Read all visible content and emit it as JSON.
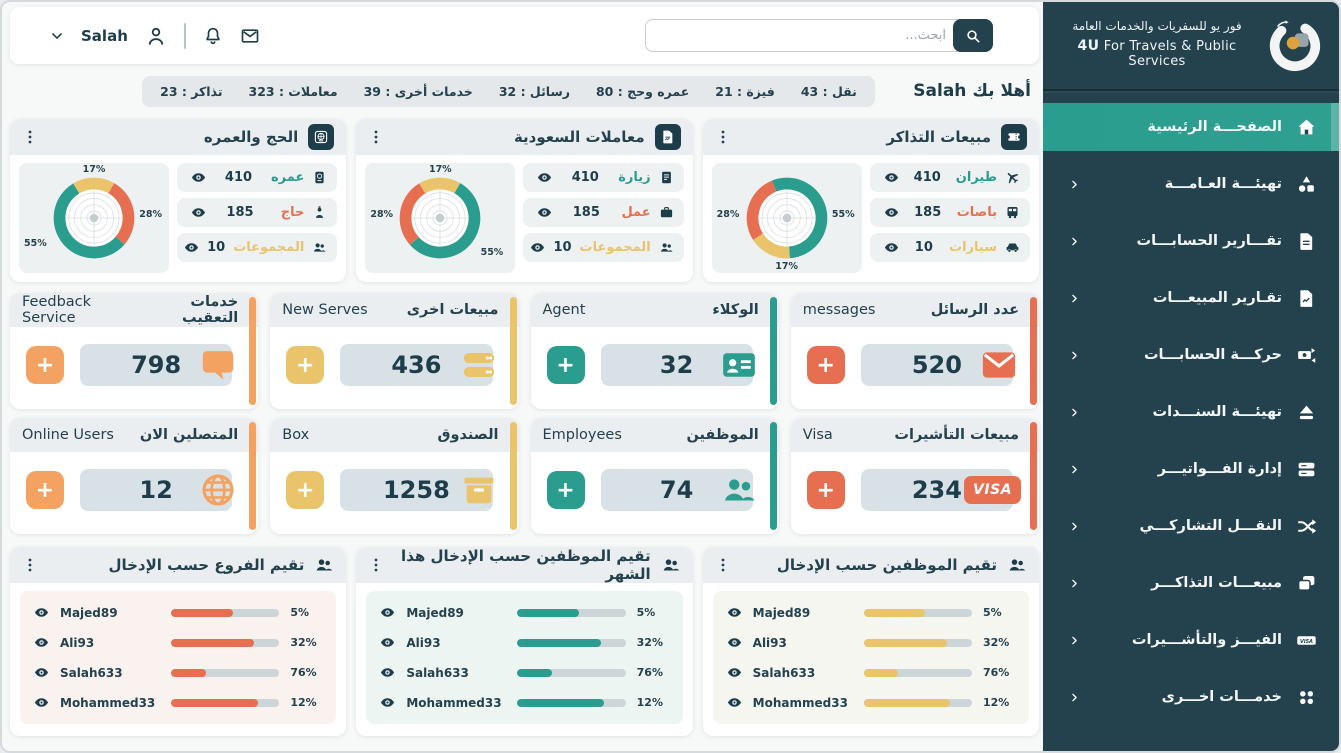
{
  "topbar": {
    "user": "Salah",
    "search_placeholder": "ابحث..."
  },
  "sidebar": {
    "brand_ar": "فور يو للسفريات والخدمات العامة",
    "brand_en_bold": "4U",
    "brand_en_rest": "For Travels & Public Services",
    "items": [
      {
        "id": "home",
        "label": "الصفحـــة الرئيسية",
        "icon": "home",
        "active": true,
        "chevron": false
      },
      {
        "id": "general-setup",
        "label": "تهيئـــة العـامـــة",
        "icon": "shapes",
        "active": false,
        "chevron": true
      },
      {
        "id": "account-reports",
        "label": "تقـــارير الحسابـــات",
        "icon": "report",
        "active": false,
        "chevron": true
      },
      {
        "id": "sales-reports",
        "label": "تقـارير المبيعـــات",
        "icon": "salesdoc",
        "active": false,
        "chevron": true
      },
      {
        "id": "account-moves",
        "label": "حركـــة الحسابـــات",
        "icon": "transfer",
        "active": false,
        "chevron": true
      },
      {
        "id": "bonds-setup",
        "label": "تهيئـــة السنـــدات",
        "icon": "eject",
        "active": false,
        "chevron": true
      },
      {
        "id": "invoices",
        "label": "إدارة الفـــواتيـــر",
        "icon": "invoices",
        "active": false,
        "chevron": true
      },
      {
        "id": "shared-transport",
        "label": "النقـــل التشاركـــي",
        "icon": "shuffle",
        "active": false,
        "chevron": true
      },
      {
        "id": "ticket-sales",
        "label": "مبيعـــات التذاكـــر",
        "icon": "tickets",
        "active": false,
        "chevron": true
      },
      {
        "id": "visas",
        "label": "الفيـــز والتأشـــيرات",
        "icon": "visabadge",
        "active": false,
        "chevron": true
      },
      {
        "id": "other-services",
        "label": "خدمـــات اخـــرى",
        "icon": "griddots",
        "active": false,
        "chevron": true
      }
    ]
  },
  "welcome": {
    "greeting": "أهلا بك Salah",
    "stats": [
      {
        "label": "تذاكر",
        "value": "23"
      },
      {
        "label": "معاملات",
        "value": "323"
      },
      {
        "label": "خدمات أخرى",
        "value": "39"
      },
      {
        "label": "رسائل",
        "value": "32"
      },
      {
        "label": "عمره وحج",
        "value": "80"
      },
      {
        "label": "فيزة",
        "value": "21"
      },
      {
        "label": "نقل",
        "value": "43"
      }
    ]
  },
  "colors": {
    "teal": "#2a9d8f",
    "red_orange": "#e76f51",
    "yellow": "#e9c46a",
    "orange": "#f4a261",
    "navy": "#1d3d4a",
    "sidebar_bg": "#24414e"
  },
  "donut_cards": [
    {
      "id": "hajj-umrah",
      "title": "الحج والعمره",
      "icon": "globeframe",
      "rows": [
        {
          "label": "عمره",
          "icon": "passport",
          "value": "410",
          "color": "#2a9d8f"
        },
        {
          "label": "حاج",
          "icon": "pilgrim",
          "value": "185",
          "color": "#e76f51"
        },
        {
          "label": "المجموعات",
          "icon": "people",
          "value": "10",
          "color": "#e9c46a"
        }
      ],
      "chart": {
        "start_deg": -31,
        "segments": [
          {
            "pct": 17,
            "color": "#e9c46a",
            "label": "17%",
            "pos": "top"
          },
          {
            "pct": 28,
            "color": "#e76f51",
            "label": "28%",
            "pos": "right"
          },
          {
            "pct": 55,
            "color": "#2a9d8f",
            "label": "55%",
            "pos": "left-low"
          }
        ]
      }
    },
    {
      "id": "saudi-transactions",
      "title": "معاملات السعودية",
      "icon": "doclines",
      "rows": [
        {
          "label": "زيارة",
          "icon": "visitdoc",
          "value": "410",
          "color": "#2a9d8f"
        },
        {
          "label": "عمل",
          "icon": "briefcase",
          "value": "185",
          "color": "#e76f51"
        },
        {
          "label": "المجموعات",
          "icon": "people",
          "value": "10",
          "color": "#e9c46a"
        }
      ],
      "chart": {
        "start_deg": -31,
        "segments": [
          {
            "pct": 17,
            "color": "#e9c46a",
            "label": "17%",
            "pos": "top"
          },
          {
            "pct": 55,
            "color": "#2a9d8f",
            "label": "55%",
            "pos": "bottom-right"
          },
          {
            "pct": 28,
            "color": "#e76f51",
            "label": "28%",
            "pos": "left"
          }
        ]
      }
    },
    {
      "id": "ticket-sales",
      "title": "مبيعات التذاكر",
      "icon": "ticket",
      "rows": [
        {
          "label": "طيران",
          "icon": "plane",
          "value": "410",
          "color": "#2a9d8f"
        },
        {
          "label": "باصات",
          "icon": "bus",
          "value": "185",
          "color": "#e76f51"
        },
        {
          "label": "سيارات",
          "icon": "car",
          "value": "10",
          "color": "#e9c46a"
        }
      ],
      "chart": {
        "start_deg": -22,
        "segments": [
          {
            "pct": 55,
            "color": "#2a9d8f",
            "label": "55%",
            "pos": "right"
          },
          {
            "pct": 17,
            "color": "#e9c46a",
            "label": "17%",
            "pos": "bottom"
          },
          {
            "pct": 28,
            "color": "#e76f51",
            "label": "28%",
            "pos": "left"
          }
        ]
      }
    }
  ],
  "stat_cards": [
    {
      "id": "feedback",
      "title_ar": "خدمات التعقيب",
      "title_en": "Feedback Service",
      "value": "798",
      "icon": "chat",
      "accent": "#f4a261"
    },
    {
      "id": "new-serves",
      "title_ar": "مبيعات اخرى",
      "title_en": "New Serves",
      "value": "436",
      "icon": "listpills",
      "accent": "#e9c46a"
    },
    {
      "id": "agent",
      "title_ar": "الوكلاء",
      "title_en": "Agent",
      "value": "32",
      "icon": "idcard",
      "accent": "#2a9d8f"
    },
    {
      "id": "messages",
      "title_ar": "عدد الرسائل",
      "title_en": "messages",
      "value": "520",
      "icon": "mailfill",
      "accent": "#e76f51"
    },
    {
      "id": "online",
      "title_ar": "المتصلين الان",
      "title_en": "Online Users",
      "value": "12",
      "icon": "globe",
      "accent": "#f4a261"
    },
    {
      "id": "box",
      "title_ar": "الصندوق",
      "title_en": "Box",
      "value": "1258",
      "icon": "box",
      "accent": "#e9c46a"
    },
    {
      "id": "employees",
      "title_ar": "الموظفين",
      "title_en": "Employees",
      "value": "74",
      "icon": "people",
      "accent": "#2a9d8f"
    },
    {
      "id": "visa",
      "title_ar": "مبيعات التأشيرات",
      "title_en": "Visa",
      "value": "234",
      "icon": "visa",
      "accent": "#e76f51",
      "badge_text": "VISA"
    }
  ],
  "ratings": {
    "cards": [
      {
        "id": "branches-entry",
        "title": "تقيم الفروع حسب الإدخال",
        "color": "#e76f51",
        "tint": "#faf2ee"
      },
      {
        "id": "employees-entry-month",
        "title": "تقيم الموظفين حسب الإدخال هذا الشهر",
        "color": "#2a9d8f",
        "tint": "#edf5f2"
      },
      {
        "id": "employees-entry",
        "title": "تقيم الموظفين حسب الإدخال",
        "color": "#e9c46a",
        "tint": "#f5f6f0"
      }
    ],
    "rows": [
      {
        "name": "Majed89",
        "percent": "5%",
        "bar_fill_pct": 57
      },
      {
        "name": "Ali93",
        "percent": "32%",
        "bar_fill_pct": 77
      },
      {
        "name": "Salah633",
        "percent": "76%",
        "bar_fill_pct": 32
      },
      {
        "name": "Mohammed33",
        "percent": "12%",
        "bar_fill_pct": 80
      }
    ]
  },
  "chart_data": [
    {
      "type": "pie",
      "title": "الحج والعمره",
      "labels": [
        "عمره",
        "حاج",
        "المجموعات"
      ],
      "values": [
        55,
        28,
        17
      ],
      "unit": "%",
      "counts": [
        410,
        185,
        10
      ],
      "colors": [
        "#2a9d8f",
        "#e76f51",
        "#e9c46a"
      ]
    },
    {
      "type": "pie",
      "title": "معاملات السعودية",
      "labels": [
        "زيارة",
        "عمل",
        "المجموعات"
      ],
      "values": [
        55,
        28,
        17
      ],
      "unit": "%",
      "counts": [
        410,
        185,
        10
      ],
      "colors": [
        "#2a9d8f",
        "#e76f51",
        "#e9c46a"
      ]
    },
    {
      "type": "pie",
      "title": "مبيعات التذاكر",
      "labels": [
        "طيران",
        "باصات",
        "سيارات"
      ],
      "values": [
        55,
        28,
        17
      ],
      "unit": "%",
      "counts": [
        410,
        185,
        10
      ],
      "colors": [
        "#2a9d8f",
        "#e76f51",
        "#e9c46a"
      ]
    },
    {
      "type": "bar",
      "title": "تقيم الفروع حسب الإدخال",
      "categories": [
        "Majed89",
        "Ali93",
        "Salah633",
        "Mohammed33"
      ],
      "values": [
        5,
        32,
        76,
        12
      ],
      "unit": "%"
    },
    {
      "type": "bar",
      "title": "تقيم الموظفين حسب الإدخال هذا الشهر",
      "categories": [
        "Majed89",
        "Ali93",
        "Salah633",
        "Mohammed33"
      ],
      "values": [
        5,
        32,
        76,
        12
      ],
      "unit": "%"
    },
    {
      "type": "bar",
      "title": "تقيم الموظفين حسب الإدخال",
      "categories": [
        "Majed89",
        "Ali93",
        "Salah633",
        "Mohammed33"
      ],
      "values": [
        5,
        32,
        76,
        12
      ],
      "unit": "%"
    }
  ]
}
